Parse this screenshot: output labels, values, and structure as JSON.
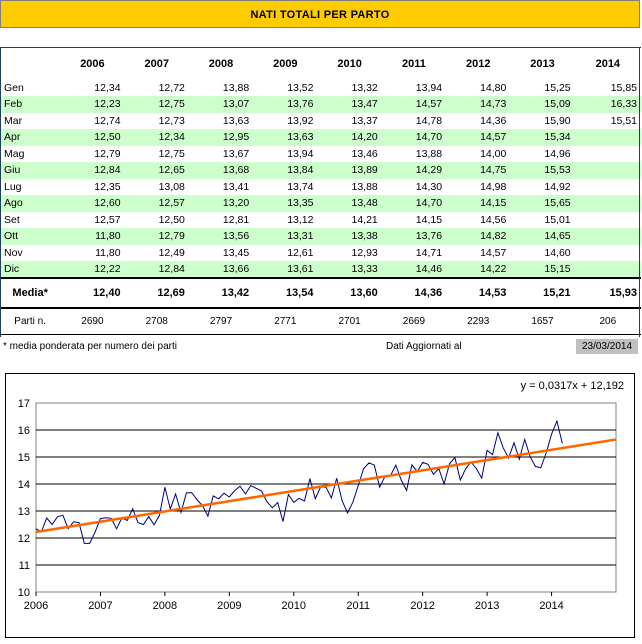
{
  "title": "NATI TOTALI PER PARTO",
  "table": {
    "years": [
      "2006",
      "2007",
      "2008",
      "2009",
      "2010",
      "2011",
      "2012",
      "2013",
      "2014"
    ],
    "rows": [
      {
        "month": "Gen",
        "values": [
          "12,34",
          "12,72",
          "13,88",
          "13,52",
          "13,32",
          "13,94",
          "14,80",
          "15,25",
          "15,85"
        ]
      },
      {
        "month": "Feb",
        "values": [
          "12,23",
          "12,75",
          "13,07",
          "13,76",
          "13,47",
          "14,57",
          "14,73",
          "15,09",
          "16,33"
        ]
      },
      {
        "month": "Mar",
        "values": [
          "12,74",
          "12,73",
          "13,63",
          "13,92",
          "13,37",
          "14,78",
          "14,36",
          "15,90",
          "15,51"
        ]
      },
      {
        "month": "Apr",
        "values": [
          "12,50",
          "12,34",
          "12,95",
          "13,63",
          "14,20",
          "14,70",
          "14,57",
          "15,34",
          ""
        ]
      },
      {
        "month": "Mag",
        "values": [
          "12,79",
          "12,75",
          "13,67",
          "13,94",
          "13,46",
          "13,88",
          "14,00",
          "14,96",
          ""
        ]
      },
      {
        "month": "Giu",
        "values": [
          "12,84",
          "12,65",
          "13,68",
          "13,84",
          "13,89",
          "14,29",
          "14,75",
          "15,53",
          ""
        ]
      },
      {
        "month": "Lug",
        "values": [
          "12,35",
          "13,08",
          "13,41",
          "13,74",
          "13,88",
          "14,30",
          "14,98",
          "14,92",
          ""
        ]
      },
      {
        "month": "Ago",
        "values": [
          "12,60",
          "12,57",
          "13,20",
          "13,35",
          "13,48",
          "14,70",
          "14,15",
          "15,65",
          ""
        ]
      },
      {
        "month": "Set",
        "values": [
          "12,57",
          "12,50",
          "12,81",
          "13,12",
          "14,21",
          "14,15",
          "14,56",
          "15,01",
          ""
        ]
      },
      {
        "month": "Ott",
        "values": [
          "11,80",
          "12,79",
          "13,56",
          "13,31",
          "13,38",
          "13,76",
          "14,82",
          "14,65",
          ""
        ]
      },
      {
        "month": "Nov",
        "values": [
          "11,80",
          "12,49",
          "13,45",
          "12,61",
          "12,93",
          "14,71",
          "14,57",
          "14,60",
          ""
        ]
      },
      {
        "month": "Dic",
        "values": [
          "12,22",
          "12,84",
          "13,66",
          "13,61",
          "13,33",
          "14,46",
          "14,22",
          "15,15",
          ""
        ]
      }
    ],
    "average_label": "Media*",
    "averages": [
      "12,40",
      "12,69",
      "13,42",
      "13,54",
      "13,60",
      "14,36",
      "14,53",
      "15,21",
      "15,93"
    ],
    "count_label": "Parti n.",
    "counts": [
      "2690",
      "2708",
      "2797",
      "2771",
      "2701",
      "2669",
      "2293",
      "1657",
      "206"
    ]
  },
  "footnote": "* media ponderata per numero dei parti",
  "updated_label": "Dati Aggiornati al",
  "updated_date": "23/03/2014",
  "colors": {
    "title_bg": "#ffcc00",
    "alt_row": "#ccffcc",
    "series": "#000080",
    "trend": "#ff6600",
    "date_bg": "#c0c0c0"
  },
  "chart_data": {
    "type": "line",
    "equation": "y = 0,0317x + 12,192",
    "x_ticks": [
      "2006",
      "2007",
      "2008",
      "2009",
      "2010",
      "2011",
      "2012",
      "2013",
      "2014"
    ],
    "ylim": [
      10,
      17
    ],
    "y_ticks": [
      10,
      11,
      12,
      13,
      14,
      15,
      16,
      17
    ],
    "grid": true,
    "series": [
      {
        "values": [
          12.34,
          12.23,
          12.74,
          12.5,
          12.79,
          12.84,
          12.35,
          12.6,
          12.57,
          11.8,
          11.8,
          12.22,
          12.72,
          12.75,
          12.73,
          12.34,
          12.75,
          12.65,
          13.08,
          12.57,
          12.5,
          12.79,
          12.49,
          12.84,
          13.88,
          13.07,
          13.63,
          12.95,
          13.67,
          13.68,
          13.41,
          13.2,
          12.81,
          13.56,
          13.45,
          13.66,
          13.52,
          13.76,
          13.92,
          13.63,
          13.94,
          13.84,
          13.74,
          13.35,
          13.12,
          13.31,
          12.61,
          13.61,
          13.32,
          13.47,
          13.37,
          14.2,
          13.46,
          13.89,
          13.88,
          13.48,
          14.21,
          13.38,
          12.93,
          13.33,
          13.94,
          14.57,
          14.78,
          14.7,
          13.88,
          14.29,
          14.3,
          14.7,
          14.15,
          13.76,
          14.71,
          14.46,
          14.8,
          14.73,
          14.36,
          14.57,
          14.0,
          14.75,
          14.98,
          14.15,
          14.56,
          14.82,
          14.57,
          14.22,
          15.25,
          15.09,
          15.9,
          15.34,
          14.96,
          15.53,
          14.92,
          15.65,
          15.01,
          14.65,
          14.6,
          15.15,
          15.85,
          16.33,
          15.51
        ]
      },
      {
        "trend": {
          "slope": 0.0317,
          "intercept": 12.192,
          "x_from": 1,
          "x_to": 109
        }
      }
    ]
  }
}
